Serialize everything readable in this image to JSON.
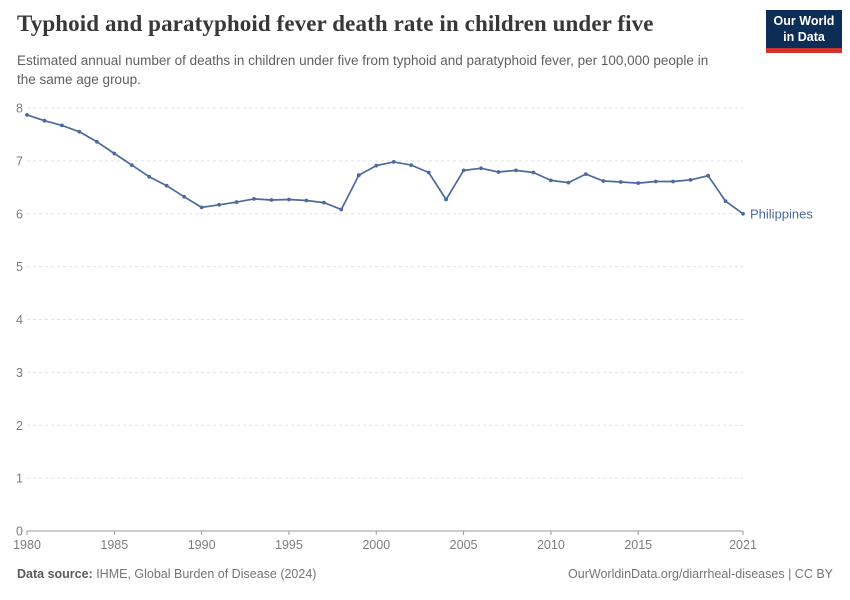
{
  "header": {
    "title": "Typhoid and paratyphoid fever death rate in children under five",
    "subtitle": "Estimated annual number of deaths in children under five from typhoid and paratyphoid fever, per 100,000 people in the same age group.",
    "logo": {
      "line1": "Our World",
      "line2": "in Data"
    }
  },
  "chart_data": {
    "type": "line",
    "title": "Typhoid and paratyphoid fever death rate in children under five",
    "xlabel": "",
    "ylabel": "",
    "xlim": [
      1980,
      2021
    ],
    "ylim": [
      0,
      8
    ],
    "x_ticks": [
      1980,
      1985,
      1990,
      1995,
      2000,
      2005,
      2010,
      2015,
      2021
    ],
    "y_ticks": [
      0,
      1,
      2,
      3,
      4,
      5,
      6,
      7,
      8
    ],
    "grid": "horizontal-dashed",
    "legend_position": "end-of-line",
    "x": [
      1980,
      1981,
      1982,
      1983,
      1984,
      1985,
      1986,
      1987,
      1988,
      1989,
      1990,
      1991,
      1992,
      1993,
      1994,
      1995,
      1996,
      1997,
      1998,
      1999,
      2000,
      2001,
      2002,
      2003,
      2004,
      2005,
      2006,
      2007,
      2008,
      2009,
      2010,
      2011,
      2012,
      2013,
      2014,
      2015,
      2016,
      2017,
      2018,
      2019,
      2020,
      2021
    ],
    "series": [
      {
        "name": "Philippines",
        "color": "#4C6A9C",
        "values": [
          7.87,
          7.76,
          7.67,
          7.55,
          7.36,
          7.14,
          6.92,
          6.7,
          6.53,
          6.32,
          6.12,
          6.17,
          6.22,
          6.28,
          6.26,
          6.27,
          6.25,
          6.21,
          6.08,
          6.73,
          6.91,
          6.98,
          6.92,
          6.78,
          6.27,
          6.82,
          6.86,
          6.79,
          6.82,
          6.78,
          6.63,
          6.59,
          6.75,
          6.62,
          6.6,
          6.58,
          6.61,
          6.61,
          6.64,
          6.72,
          6.24,
          6.0
        ]
      }
    ]
  },
  "footer": {
    "datasource_label": "Data source:",
    "datasource_value": " IHME, Global Burden of Disease (2024)",
    "link": "OurWorldinData.org/diarrheal-diseases",
    "license": " | CC BY"
  },
  "colors": {
    "line": "#4C6A9C",
    "entity_label": "#4C6A9C",
    "gridline": "#e0e0e0",
    "axis": "#9a9a9a",
    "tick_label": "#7d7d7d",
    "logo_bg": "#0C2D55",
    "logo_red": "#D0342C"
  }
}
